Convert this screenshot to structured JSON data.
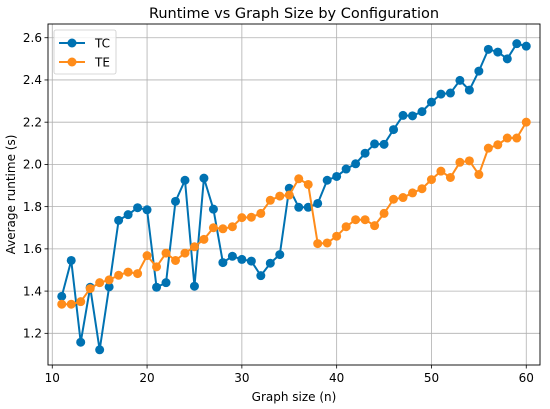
{
  "chart_data": {
    "type": "line",
    "title": "Runtime vs Graph Size by Configuration",
    "xlabel": "Graph size (n)",
    "ylabel": "Average runtime (s)",
    "xlim": [
      9.55,
      61.45
    ],
    "ylim": [
      1.05,
      2.665
    ],
    "xticks": [
      10,
      20,
      30,
      40,
      50,
      60
    ],
    "yticks": [
      1.2,
      1.4,
      1.6,
      1.8,
      2.0,
      2.2,
      2.4,
      2.6
    ],
    "ytick_labels": [
      "1.2",
      "1.4",
      "1.6",
      "1.8",
      "2.0",
      "2.2",
      "2.4",
      "2.6"
    ],
    "grid": true,
    "legend": "upper-left",
    "x": [
      11,
      12,
      13,
      14,
      15,
      16,
      17,
      18,
      19,
      20,
      21,
      22,
      23,
      24,
      25,
      26,
      27,
      28,
      29,
      30,
      31,
      32,
      33,
      34,
      35,
      36,
      37,
      38,
      39,
      40,
      41,
      42,
      43,
      44,
      45,
      46,
      47,
      48,
      49,
      50,
      51,
      52,
      53,
      54,
      55,
      56,
      57,
      58,
      59,
      60
    ],
    "series": [
      {
        "name": "TC",
        "color": "#0072b2",
        "values": [
          1.375,
          1.545,
          1.158,
          1.418,
          1.122,
          1.42,
          1.735,
          1.762,
          1.795,
          1.785,
          1.418,
          1.44,
          1.825,
          1.925,
          1.423,
          1.935,
          1.788,
          1.535,
          1.565,
          1.55,
          1.542,
          1.473,
          1.532,
          1.573,
          1.887,
          1.797,
          1.797,
          1.815,
          1.925,
          1.943,
          1.978,
          2.003,
          2.053,
          2.097,
          2.095,
          2.165,
          2.232,
          2.23,
          2.25,
          2.295,
          2.333,
          2.338,
          2.398,
          2.352,
          2.442,
          2.545,
          2.532,
          2.5,
          2.572,
          2.56
        ]
      },
      {
        "name": "TE",
        "color": "#ff8c1a",
        "values": [
          1.338,
          1.338,
          1.35,
          1.412,
          1.44,
          1.453,
          1.475,
          1.49,
          1.483,
          1.568,
          1.515,
          1.58,
          1.545,
          1.58,
          1.61,
          1.645,
          1.7,
          1.695,
          1.705,
          1.748,
          1.75,
          1.768,
          1.83,
          1.85,
          1.855,
          1.932,
          1.905,
          1.625,
          1.628,
          1.66,
          1.705,
          1.738,
          1.738,
          1.71,
          1.768,
          1.835,
          1.843,
          1.865,
          1.885,
          1.928,
          1.968,
          1.938,
          2.01,
          2.017,
          1.952,
          2.077,
          2.093,
          2.125,
          2.125,
          2.2
        ]
      }
    ]
  }
}
